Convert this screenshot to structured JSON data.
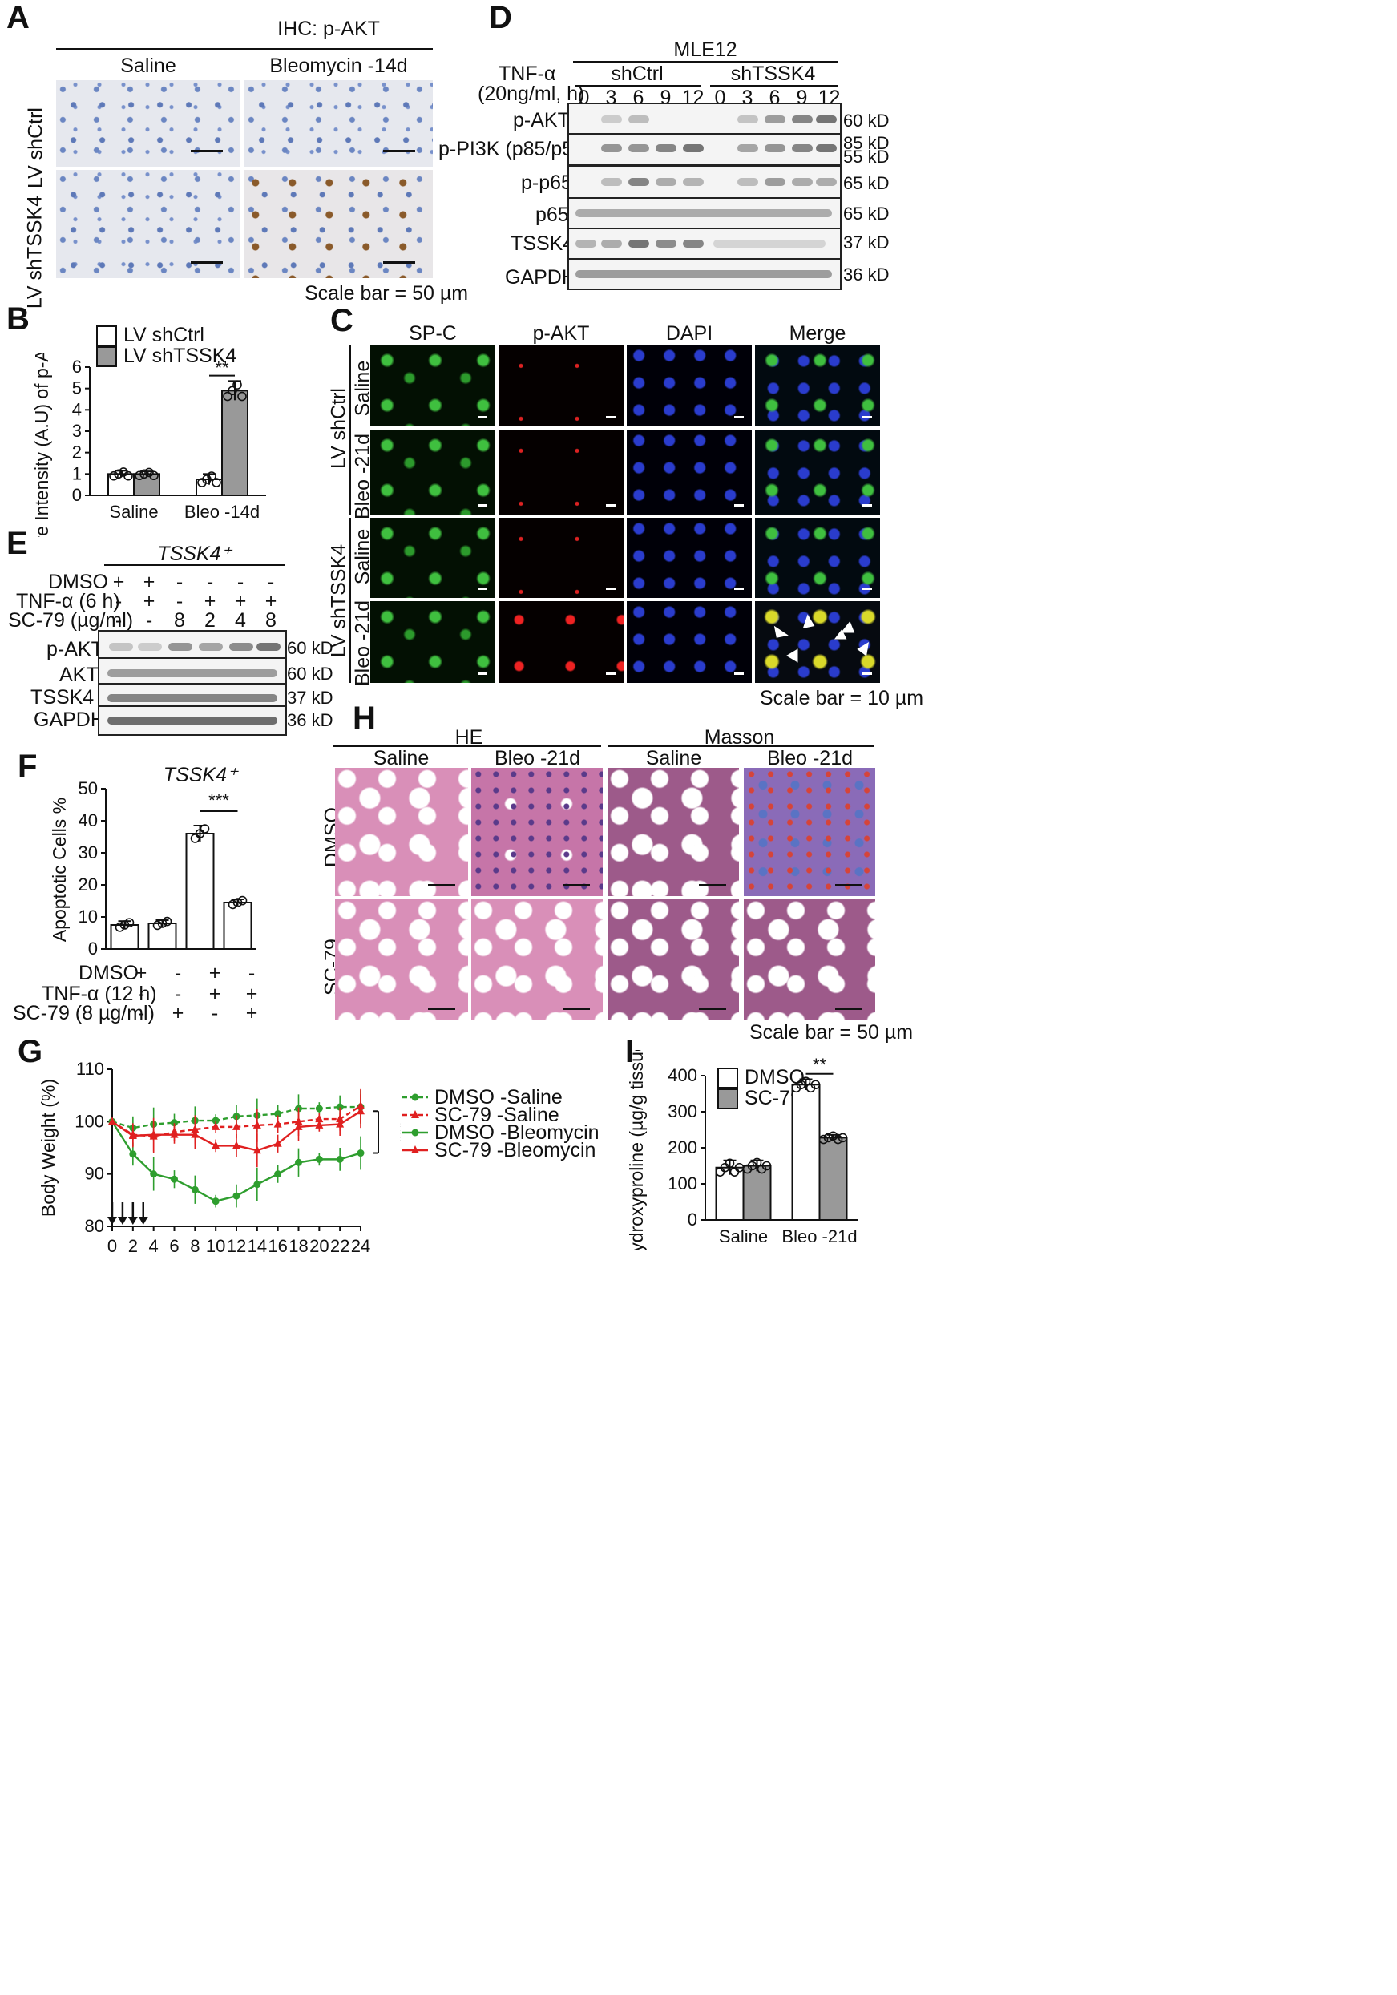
{
  "panel_letters": [
    "A",
    "B",
    "C",
    "D",
    "E",
    "F",
    "G",
    "H",
    "I"
  ],
  "panel_a": {
    "title": "IHC: p-AKT",
    "col_labels": [
      "Saline",
      "Bleomycin -14d"
    ],
    "row_labels": [
      "LV shCtrl",
      "LV shTSSK4"
    ],
    "scale_note": "Scale bar = 50 µm"
  },
  "panel_b": {
    "legend": [
      "LV shCtrl",
      "LV shTSSK4"
    ],
    "ylabel": "Relative Intensity (A.U) of p-AKT (Fold)",
    "significance": "**"
  },
  "panel_c": {
    "col_labels": [
      "SP-C",
      "p-AKT",
      "DAPI",
      "Merge"
    ],
    "group_labels": [
      "LV shCtrl",
      "LV shTSSK4"
    ],
    "row_labels": [
      "Saline",
      "Bleo -21d",
      "Saline",
      "Bleo -21d"
    ],
    "scale_note": "Scale bar = 10 µm"
  },
  "panel_d": {
    "cell_line": "MLE12",
    "treatment": "TNF-α",
    "treatment_unit": "(20ng/ml, h)",
    "groups": [
      "shCtrl",
      "shTSSK4"
    ],
    "timepoints": [
      "0",
      "3",
      "6",
      "9",
      "12",
      "0",
      "3",
      "6",
      "9",
      "12"
    ],
    "rows": [
      {
        "label": "p-AKT",
        "kd": "60 kD"
      },
      {
        "label": "p-PI3K (p85/p55)",
        "kd": "85 kD",
        "kd2": "55 kD"
      },
      {
        "label": "p-p65",
        "kd": "65 kD"
      },
      {
        "label": "p65",
        "kd": "65 kD"
      },
      {
        "label": "TSSK4",
        "kd": "37 kD"
      },
      {
        "label": "GAPDH",
        "kd": "36 kD"
      }
    ]
  },
  "panel_e": {
    "header": "TSSK4⁺",
    "conditions": [
      {
        "label": "DMSO",
        "values": [
          "+",
          "+",
          "-",
          "-",
          "-",
          "-"
        ]
      },
      {
        "label": "TNF-α (6 h)",
        "values": [
          "-",
          "+",
          "-",
          "+",
          "+",
          "+"
        ]
      },
      {
        "label": "SC-79 (µg/ml)",
        "values": [
          "-",
          "-",
          "8",
          "2",
          "4",
          "8"
        ]
      }
    ],
    "rows": [
      {
        "label": "p-AKT",
        "kd": "60 kD"
      },
      {
        "label": "AKT",
        "kd": "60 kD"
      },
      {
        "label": "TSSK4",
        "kd": "37 kD"
      },
      {
        "label": "GAPDH",
        "kd": "36 kD"
      }
    ]
  },
  "panel_f": {
    "title": "TSSK4⁺",
    "ylabel": "Apoptotic Cells %",
    "significance": "***",
    "conditions": [
      {
        "label": "DMSO",
        "values": [
          "+",
          "-",
          "+",
          "-"
        ]
      },
      {
        "label": "TNF-α (12 h)",
        "values": [
          "-",
          "-",
          "+",
          "+"
        ]
      },
      {
        "label": "SC-79 (8 µg/ml)",
        "values": [
          "-",
          "+",
          "-",
          "+"
        ]
      }
    ]
  },
  "panel_g": {
    "ylabel": "Body Weight (%)",
    "significance": "***"
  },
  "panel_h": {
    "stains": [
      "HE",
      "Masson"
    ],
    "col_labels": [
      "Saline",
      "Bleo -21d",
      "Saline",
      "Bleo -21d"
    ],
    "row_labels": [
      "DMSO",
      "SC-79"
    ],
    "scale_note": "Scale bar = 50 µm"
  },
  "panel_i": {
    "legend": [
      "DMSO",
      "SC-79"
    ],
    "ylabel": "Hydroxyproline (µg/g tissue)",
    "significance": "**"
  },
  "chart_data": [
    {
      "type": "bar",
      "panel": "B",
      "categories": [
        "Saline",
        "Bleo -14d"
      ],
      "series": [
        {
          "name": "LV shCtrl",
          "values": [
            1.0,
            0.75
          ],
          "errors": [
            0.15,
            0.25
          ]
        },
        {
          "name": "LV shTSSK4",
          "values": [
            1.0,
            4.9
          ],
          "errors": [
            0.12,
            0.45
          ]
        }
      ],
      "ylim": [
        0,
        6
      ],
      "yticks": [
        0,
        1,
        2,
        3,
        4,
        5,
        6
      ],
      "ylabel": "Relative Intensity (A.U) of p-AKT (Fold)"
    },
    {
      "type": "bar",
      "panel": "F",
      "categories": [
        "1",
        "2",
        "3",
        "4"
      ],
      "values": [
        7.5,
        8,
        36,
        14.5
      ],
      "errors": [
        1.2,
        1,
        2.5,
        1
      ],
      "ylim": [
        0,
        50
      ],
      "yticks": [
        0,
        10,
        20,
        30,
        40,
        50
      ],
      "ylabel": "Apoptotic Cells %"
    },
    {
      "type": "line",
      "panel": "G",
      "x": [
        0,
        2,
        4,
        6,
        8,
        10,
        12,
        14,
        16,
        18,
        20,
        22,
        24
      ],
      "series": [
        {
          "name": "DMSO -Saline",
          "values": [
            100,
            98.8,
            99.5,
            99.8,
            100.2,
            100.2,
            101,
            101.2,
            101.5,
            102.5,
            102.5,
            102.8,
            102.8
          ],
          "color": "#2e9e2e",
          "dashed": true
        },
        {
          "name": "SC-79 -Saline",
          "values": [
            100,
            97.5,
            97.2,
            98,
            98.5,
            99,
            99,
            99.3,
            99.5,
            100,
            100.5,
            100.5,
            103
          ],
          "color": "#e02020",
          "dashed": true
        },
        {
          "name": "DMSO -Bleomycin",
          "values": [
            100,
            93.8,
            90,
            89,
            87,
            84.8,
            85.8,
            88,
            90,
            92.2,
            92.8,
            92.8,
            94
          ],
          "color": "#2e9e2e",
          "dashed": false
        },
        {
          "name": "SC-79 -Bleomycin",
          "values": [
            100,
            97.3,
            97.5,
            97.5,
            97.5,
            95.4,
            95.4,
            94.5,
            95.8,
            99,
            99.3,
            99.5,
            102
          ],
          "color": "#e02020",
          "dashed": false
        }
      ],
      "ylim": [
        80,
        110
      ],
      "yticks": [
        80,
        90,
        100,
        110
      ],
      "xticks": [
        0,
        2,
        4,
        6,
        8,
        10,
        12,
        14,
        16,
        18,
        20,
        22,
        24
      ],
      "ylabel": "Body Weight (%)",
      "arrows_at": [
        0,
        1,
        2,
        3
      ]
    },
    {
      "type": "bar",
      "panel": "I",
      "categories": [
        "Saline",
        "Bleo -21d"
      ],
      "series": [
        {
          "name": "DMSO",
          "values": [
            145,
            375
          ],
          "errors": [
            20,
            15
          ]
        },
        {
          "name": "SC-79",
          "values": [
            150,
            228
          ],
          "errors": [
            15,
            8
          ]
        }
      ],
      "ylim": [
        0,
        400
      ],
      "yticks": [
        0,
        100,
        200,
        300,
        400
      ],
      "ylabel": "Hydroxyproline (µg/g tissue)"
    }
  ]
}
